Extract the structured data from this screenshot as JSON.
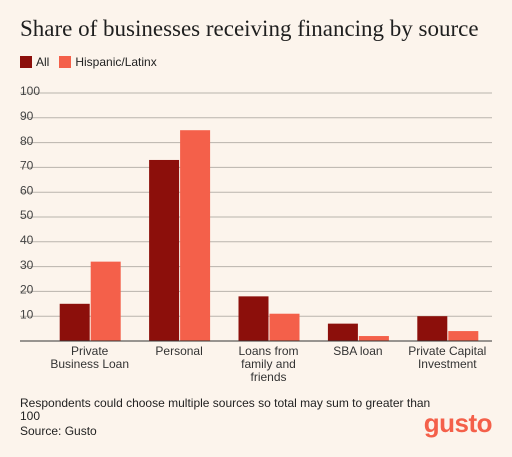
{
  "chart_data": {
    "type": "bar",
    "title": "Share of businesses receiving financing by source",
    "categories": [
      "Private Business Loan",
      "Personal",
      "Loans from family and friends",
      "SBA loan",
      "Private Capital Investment"
    ],
    "series": [
      {
        "name": "All",
        "color": "#8c0f0b",
        "values": [
          15,
          73,
          18,
          7,
          10
        ]
      },
      {
        "name": "Hispanic/Latinx",
        "color": "#f4604a",
        "values": [
          32,
          85,
          11,
          2,
          4
        ]
      }
    ],
    "ylim": [
      0,
      100
    ],
    "yticks": [
      10,
      20,
      30,
      40,
      50,
      60,
      70,
      80,
      90,
      100
    ],
    "grid": true,
    "legend": "top-left",
    "note": "Respondents could choose multiple sources so total may sum to greater than 100",
    "source": "Source: Gusto",
    "logo": "gusto"
  }
}
